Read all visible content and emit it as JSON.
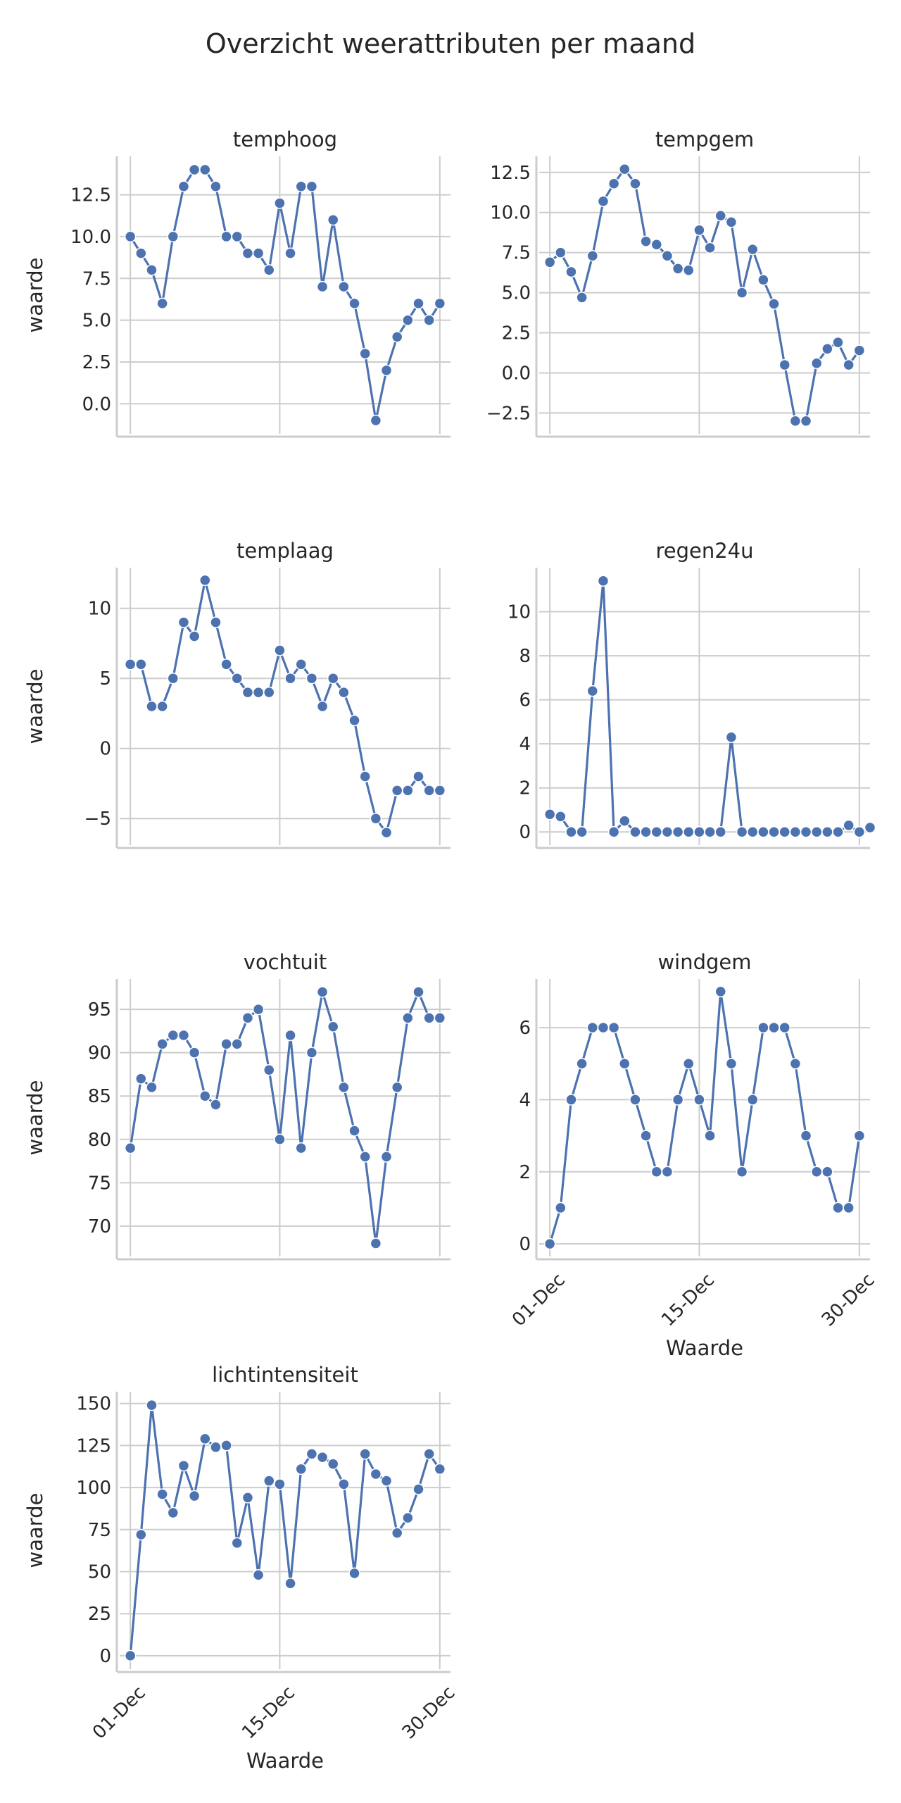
{
  "figure": {
    "title": "Overzicht weerattributen per maand",
    "line_color": "#4c72b0",
    "grid_color": "#cccccc",
    "axis_color": "#cccccc"
  },
  "chart_data": [
    {
      "type": "line",
      "title": "temphoog",
      "ylabel": "waarde",
      "xlabel": "",
      "ylim": [
        -1.8,
        14.8
      ],
      "yticks": [
        0.0,
        2.5,
        5.0,
        7.5,
        10.0,
        12.5
      ],
      "ytick_labels": [
        "0.0",
        "2.5",
        "5.0",
        "7.5",
        "10.0",
        "12.5"
      ],
      "xlim": [
        0,
        31
      ],
      "xticks": [
        1,
        15,
        30
      ],
      "xtick_labels": [],
      "x": [
        1,
        2,
        3,
        4,
        5,
        6,
        7,
        8,
        9,
        10,
        11,
        12,
        13,
        14,
        15,
        16,
        17,
        18,
        19,
        20,
        21,
        22,
        23,
        24,
        25,
        26,
        27,
        28,
        29,
        30,
        31
      ],
      "values": [
        10,
        9,
        8,
        6,
        10,
        13,
        14,
        14,
        13,
        10,
        10,
        9,
        9,
        8,
        12,
        9,
        13,
        13,
        7,
        11,
        7,
        6,
        3,
        -1,
        2,
        4,
        5,
        6,
        5,
        6,
        null
      ]
    },
    {
      "type": "line",
      "title": "tempgem",
      "ylabel": "",
      "xlabel": "",
      "ylim": [
        -3.8,
        13.5
      ],
      "yticks": [
        -2.5,
        0.0,
        2.5,
        5.0,
        7.5,
        10.0,
        12.5
      ],
      "ytick_labels": [
        "−2.5",
        "0.0",
        "2.5",
        "5.0",
        "7.5",
        "10.0",
        "12.5"
      ],
      "xlim": [
        0,
        31
      ],
      "xticks": [
        1,
        15,
        30
      ],
      "xtick_labels": [],
      "x": [
        1,
        2,
        3,
        4,
        5,
        6,
        7,
        8,
        9,
        10,
        11,
        12,
        13,
        14,
        15,
        16,
        17,
        18,
        19,
        20,
        21,
        22,
        23,
        24,
        25,
        26,
        27,
        28,
        29,
        30,
        31
      ],
      "values": [
        6.9,
        7.5,
        6.3,
        4.7,
        7.3,
        10.7,
        11.8,
        12.7,
        11.8,
        8.2,
        8.0,
        7.3,
        6.5,
        6.4,
        8.9,
        7.8,
        9.8,
        9.4,
        5.0,
        7.7,
        5.8,
        4.3,
        0.5,
        -3.0,
        -3.0,
        0.6,
        1.5,
        1.9,
        0.5,
        1.4,
        null
      ]
    },
    {
      "type": "line",
      "title": "templaag",
      "ylabel": "waarde",
      "xlabel": "",
      "ylim": [
        -6.9,
        12.9
      ],
      "yticks": [
        -5,
        0,
        5,
        10
      ],
      "ytick_labels": [
        "−5",
        "0",
        "5",
        "10"
      ],
      "xlim": [
        0,
        31
      ],
      "xticks": [
        1,
        15,
        30
      ],
      "xtick_labels": [],
      "x": [
        1,
        2,
        3,
        4,
        5,
        6,
        7,
        8,
        9,
        10,
        11,
        12,
        13,
        14,
        15,
        16,
        17,
        18,
        19,
        20,
        21,
        22,
        23,
        24,
        25,
        26,
        27,
        28,
        29,
        30,
        31
      ],
      "values": [
        6,
        6,
        3,
        3,
        5,
        9,
        8,
        12,
        9,
        6,
        5,
        4,
        4,
        4,
        7,
        5,
        6,
        5,
        3,
        5,
        4,
        2,
        -2,
        -5,
        -6,
        -3,
        -3,
        -2,
        -3,
        -3,
        null
      ]
    },
    {
      "type": "line",
      "title": "regen24u",
      "ylabel": "",
      "xlabel": "",
      "ylim": [
        -0.6,
        12.0
      ],
      "yticks": [
        0,
        2,
        4,
        6,
        8,
        10
      ],
      "ytick_labels": [
        "0",
        "2",
        "4",
        "6",
        "8",
        "10"
      ],
      "xlim": [
        0,
        31
      ],
      "xticks": [
        1,
        15,
        30
      ],
      "xtick_labels": [],
      "x": [
        1,
        2,
        3,
        4,
        5,
        6,
        7,
        8,
        9,
        10,
        11,
        12,
        13,
        14,
        15,
        16,
        17,
        18,
        19,
        20,
        21,
        22,
        23,
        24,
        25,
        26,
        27,
        28,
        29,
        30,
        31
      ],
      "values": [
        0.8,
        0.7,
        0,
        0,
        6.4,
        11.4,
        0,
        0.5,
        0,
        0,
        0,
        0,
        0,
        0,
        0,
        0,
        0,
        4.3,
        0,
        0,
        0,
        0,
        0,
        0,
        0,
        0,
        0,
        0,
        0.3,
        0,
        0.2
      ]
    },
    {
      "type": "line",
      "title": "vochtuit",
      "ylabel": "waarde",
      "xlabel": "",
      "ylim": [
        66.5,
        98.5
      ],
      "yticks": [
        70,
        75,
        80,
        85,
        90,
        95
      ],
      "ytick_labels": [
        "70",
        "75",
        "80",
        "85",
        "90",
        "95"
      ],
      "xlim": [
        0,
        31
      ],
      "xticks": [
        1,
        15,
        30
      ],
      "xtick_labels": [],
      "x": [
        1,
        2,
        3,
        4,
        5,
        6,
        7,
        8,
        9,
        10,
        11,
        12,
        13,
        14,
        15,
        16,
        17,
        18,
        19,
        20,
        21,
        22,
        23,
        24,
        25,
        26,
        27,
        28,
        29,
        30,
        31
      ],
      "values": [
        79,
        87,
        86,
        91,
        92,
        92,
        90,
        85,
        84,
        91,
        91,
        94,
        95,
        88,
        80,
        92,
        79,
        90,
        97,
        93,
        86,
        81,
        78,
        68,
        78,
        86,
        94,
        97,
        94,
        94,
        null
      ]
    },
    {
      "type": "line",
      "title": "windgem",
      "ylabel": "",
      "xlabel": "Waarde",
      "ylim": [
        -0.35,
        7.35
      ],
      "yticks": [
        0,
        2,
        4,
        6
      ],
      "ytick_labels": [
        "0",
        "2",
        "4",
        "6"
      ],
      "xlim": [
        0,
        31
      ],
      "xticks": [
        1,
        15,
        30
      ],
      "xtick_labels": [
        "01-Dec",
        "15-Dec",
        "30-Dec"
      ],
      "x": [
        1,
        2,
        3,
        4,
        5,
        6,
        7,
        8,
        9,
        10,
        11,
        12,
        13,
        14,
        15,
        16,
        17,
        18,
        19,
        20,
        21,
        22,
        23,
        24,
        25,
        26,
        27,
        28,
        29,
        30,
        31
      ],
      "values": [
        0,
        1,
        4,
        5,
        6,
        6,
        6,
        5,
        4,
        3,
        2,
        2,
        4,
        5,
        4,
        3,
        7,
        5,
        2,
        4,
        6,
        6,
        6,
        5,
        3,
        2,
        2,
        1,
        1,
        3,
        null
      ]
    },
    {
      "type": "line",
      "title": "lichtintensiteit",
      "ylabel": "waarde",
      "xlabel": "Waarde",
      "ylim": [
        -8,
        157
      ],
      "yticks": [
        0,
        25,
        50,
        75,
        100,
        125,
        150
      ],
      "ytick_labels": [
        "0",
        "25",
        "50",
        "75",
        "100",
        "125",
        "150"
      ],
      "xlim": [
        0,
        31
      ],
      "xticks": [
        1,
        15,
        30
      ],
      "xtick_labels": [
        "01-Dec",
        "15-Dec",
        "30-Dec"
      ],
      "x": [
        1,
        2,
        3,
        4,
        5,
        6,
        7,
        8,
        9,
        10,
        11,
        12,
        13,
        14,
        15,
        16,
        17,
        18,
        19,
        20,
        21,
        22,
        23,
        24,
        25,
        26,
        27,
        28,
        29,
        30,
        31
      ],
      "values": [
        0,
        72,
        149,
        96,
        85,
        113,
        95,
        129,
        124,
        125,
        67,
        94,
        48,
        104,
        102,
        43,
        111,
        120,
        118,
        114,
        102,
        49,
        120,
        108,
        104,
        73,
        82,
        99,
        120,
        111,
        null
      ]
    }
  ]
}
